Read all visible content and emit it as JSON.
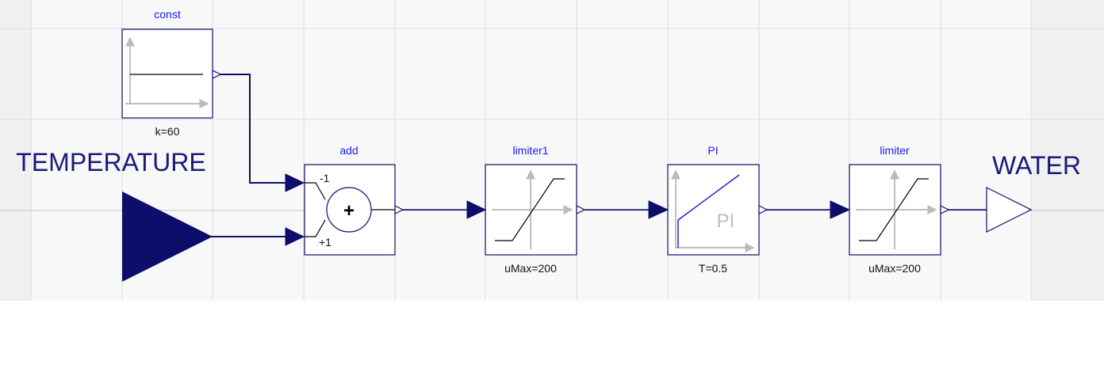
{
  "colors": {
    "canvas": "#f0f0f0",
    "block_stroke": "#0d0d6b",
    "block_name": "#1a1aff",
    "connector": "#0d0d6b",
    "grid": "#dcdcdc"
  },
  "blocks": {
    "const": {
      "name": "const",
      "param": "k=60",
      "icon": "constant-icon"
    },
    "add": {
      "name": "add",
      "param": "",
      "icon": "add-icon",
      "sign_top": "-1",
      "sign_bottom": "+1",
      "symbol": "+"
    },
    "limiter1": {
      "name": "limiter1",
      "param": "uMax=200",
      "icon": "limiter-icon"
    },
    "pi": {
      "name": "PI",
      "param": "T=0.5",
      "icon": "pi-icon",
      "icon_text": "PI"
    },
    "limiter": {
      "name": "limiter",
      "param": "uMax=200",
      "icon": "limiter-icon"
    }
  },
  "ports": {
    "input": {
      "name": "TEMPERATURE",
      "icon": "input-port-icon"
    },
    "output": {
      "name": "WATER",
      "icon": "output-port-icon"
    }
  }
}
